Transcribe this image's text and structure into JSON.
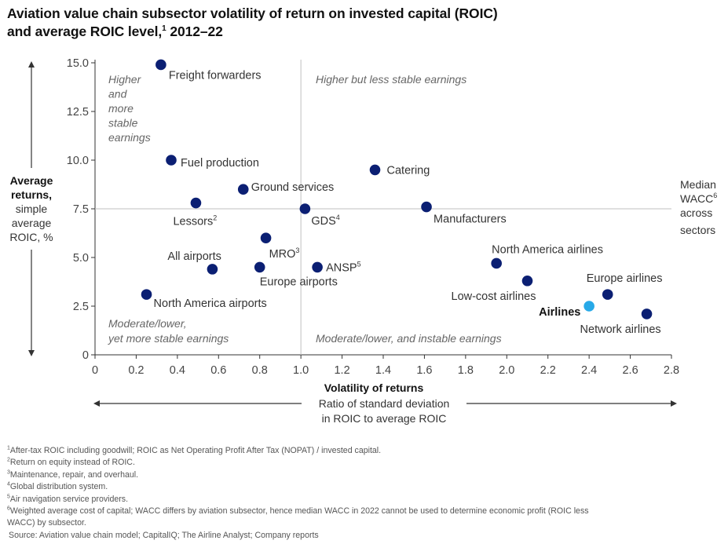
{
  "title": {
    "line1": "Aviation value chain subsector volatility of return on invested capital (ROIC)",
    "line2": "and average ROIC level,",
    "sup": "1",
    "line2_end": " 2012–22"
  },
  "chart_data": {
    "type": "scatter",
    "xlim": [
      0,
      2.8
    ],
    "ylim": [
      0,
      15
    ],
    "x_ticks": [
      "0",
      "0.2",
      "0.4",
      "0.6",
      "0.8",
      "1.0",
      "1.2",
      "1.4",
      "1.6",
      "1.8",
      "2.0",
      "2.2",
      "2.4",
      "2.6",
      "2.8"
    ],
    "y_ticks": [
      "0",
      "2.5",
      "5.0",
      "7.5",
      "10.0",
      "12.5",
      "15.0"
    ],
    "xlabel": {
      "bold": "Volatility of returns",
      "line2": "Ratio of standard deviation",
      "line3": "in ROIC to average ROIC"
    },
    "ylabel": {
      "line1": "Average",
      "line2": "returns,",
      "line3": "simple",
      "line4": "average",
      "line5": "ROIC, %"
    },
    "reference_lines": {
      "vertical_x": 1.0,
      "horizontal_y": 7.5,
      "horizontal_label": {
        "line1": "Median",
        "line1_sup": "WACC",
        "sup": "6",
        "line3": "across",
        "line4": "sectors"
      }
    },
    "quadrants": {
      "top_left": [
        "Higher",
        "and",
        "more",
        "stable",
        "earnings"
      ],
      "top_right": "Higher but less stable earnings",
      "bottom_left": [
        "Moderate/lower,",
        "yet more stable earnings"
      ],
      "bottom_right": "Moderate/lower, and instable earnings"
    },
    "points": [
      {
        "name": "Freight forwarders",
        "x": 0.32,
        "y": 14.9,
        "sup": ""
      },
      {
        "name": "Fuel production",
        "x": 0.37,
        "y": 10.0,
        "sup": ""
      },
      {
        "name": "Lessors",
        "x": 0.49,
        "y": 7.8,
        "sup": "2"
      },
      {
        "name": "Ground services",
        "x": 0.72,
        "y": 8.5,
        "sup": ""
      },
      {
        "name": "GDS",
        "x": 1.02,
        "y": 7.5,
        "sup": "4"
      },
      {
        "name": "Catering",
        "x": 1.36,
        "y": 9.5,
        "sup": ""
      },
      {
        "name": "Manufacturers",
        "x": 1.61,
        "y": 7.6,
        "sup": ""
      },
      {
        "name": "MRO",
        "x": 0.83,
        "y": 6.0,
        "sup": "3"
      },
      {
        "name": "All airports",
        "x": 0.57,
        "y": 4.4,
        "sup": ""
      },
      {
        "name": "Europe airports",
        "x": 0.8,
        "y": 4.5,
        "sup": ""
      },
      {
        "name": "ANSP",
        "x": 1.08,
        "y": 4.5,
        "sup": "5"
      },
      {
        "name": "North America airports",
        "x": 0.25,
        "y": 3.1,
        "sup": ""
      },
      {
        "name": "North America airlines",
        "x": 1.95,
        "y": 4.7,
        "sup": ""
      },
      {
        "name": "Low-cost airlines",
        "x": 2.1,
        "y": 3.8,
        "sup": ""
      },
      {
        "name": "Europe airlines",
        "x": 2.49,
        "y": 3.1,
        "sup": ""
      },
      {
        "name": "Airlines",
        "x": 2.4,
        "y": 2.5,
        "sup": "",
        "highlight": true
      },
      {
        "name": "Network airlines",
        "x": 2.68,
        "y": 2.1,
        "sup": ""
      }
    ],
    "colors": {
      "point": "#0b1f73",
      "highlight": "#27a9e8",
      "grid": "#bfbfbf",
      "axis": "#333333"
    }
  },
  "footnotes": [
    {
      "sup": "1",
      "text": "After-tax ROIC including goodwill; ROIC as Net Operating Profit After Tax (NOPAT) / invested capital."
    },
    {
      "sup": "2",
      "text": "Return on equity instead of ROIC."
    },
    {
      "sup": "3",
      "text": "Maintenance, repair, and overhaul."
    },
    {
      "sup": "4",
      "text": "Global distribution system."
    },
    {
      "sup": "5",
      "text": "Air navigation service providers."
    },
    {
      "sup": "6",
      "text": "Weighted average cost of capital; WACC differs by aviation subsector, hence median WACC in 2022 cannot be used to determine economic profit (ROIC less"
    },
    {
      "sup": "",
      "text": "WACC) by subsector."
    }
  ],
  "source": "Source: Aviation value chain model; CapitalIQ; The Airline Analyst; Company reports"
}
